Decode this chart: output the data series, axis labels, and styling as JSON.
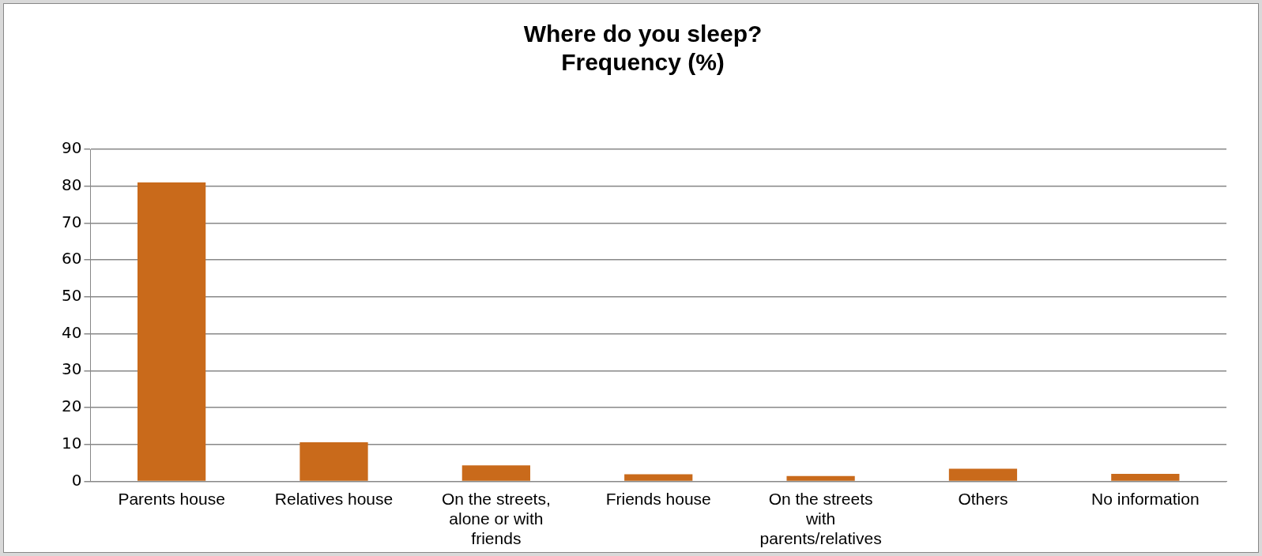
{
  "chart_data": {
    "type": "bar",
    "title": "Where do you sleep?\nFrequency (%)",
    "categories": [
      "Parents house",
      "Relatives house",
      "On the streets, alone or with friends",
      "Friends house",
      "On the streets with parents/relatives",
      "Others",
      "No information"
    ],
    "values": [
      81,
      10.6,
      4.3,
      1.9,
      1.4,
      3.4,
      2.0
    ],
    "color": "#c96a1b",
    "ylim": [
      0,
      90
    ],
    "yticks": [
      0,
      10,
      20,
      30,
      40,
      50,
      60,
      70,
      80,
      90
    ],
    "grid": "y",
    "legend": false
  }
}
